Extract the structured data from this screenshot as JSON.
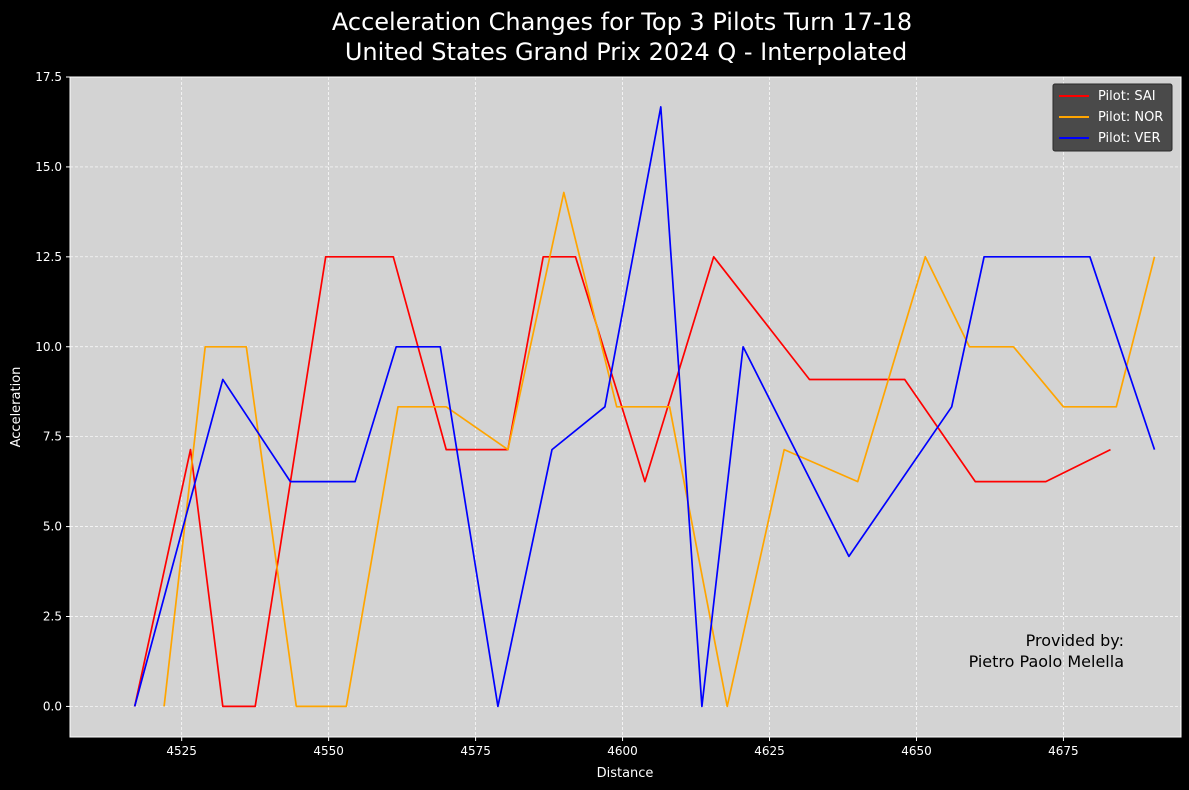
{
  "chart_data": {
    "type": "line",
    "title_lines": [
      "Acceleration Changes for Top 3 Pilots Turn 17-18",
      "United States Grand Prix 2024 Q - Interpolated"
    ],
    "xlabel": "Distance",
    "ylabel": "Acceleration",
    "xlim": [
      4506,
      4695
    ],
    "ylim": [
      -0.85,
      17.5
    ],
    "xticks": [
      4525,
      4550,
      4575,
      4600,
      4625,
      4650,
      4675
    ],
    "yticks": [
      0.0,
      2.5,
      5.0,
      7.5,
      10.0,
      12.5,
      15.0,
      17.5
    ],
    "ytick_labels": [
      "0.0",
      "2.5",
      "5.0",
      "7.5",
      "10.0",
      "12.5",
      "15.0",
      "17.5"
    ],
    "grid": true,
    "legend_position": "top-right",
    "background": "#d3d3d3",
    "series": [
      {
        "name": "Pilot: SAI",
        "color": "#ff0000",
        "points": [
          [
            4517,
            0.0
          ],
          [
            4526.5,
            7.14
          ],
          [
            4532,
            0.0
          ],
          [
            4537.5,
            0.0
          ],
          [
            4549.5,
            12.5
          ],
          [
            4561,
            12.5
          ],
          [
            4570,
            7.14
          ],
          [
            4580.5,
            7.14
          ],
          [
            4586.5,
            12.5
          ],
          [
            4592,
            12.5
          ],
          [
            4603.8,
            6.25
          ],
          [
            4615.5,
            12.5
          ],
          [
            4631.8,
            9.09
          ],
          [
            4648,
            9.09
          ],
          [
            4660,
            6.25
          ],
          [
            4672,
            6.25
          ],
          [
            4683,
            7.14
          ]
        ]
      },
      {
        "name": "Pilot: NOR",
        "color": "#ffa500",
        "points": [
          [
            4522,
            0.0
          ],
          [
            4529,
            10.0
          ],
          [
            4536,
            10.0
          ],
          [
            4544.5,
            0.0
          ],
          [
            4553,
            0.0
          ],
          [
            4561.8,
            8.33
          ],
          [
            4570,
            8.33
          ],
          [
            4580.5,
            7.14
          ],
          [
            4590,
            14.29
          ],
          [
            4599,
            8.33
          ],
          [
            4608,
            8.33
          ],
          [
            4617.8,
            0.0
          ],
          [
            4627.5,
            7.14
          ],
          [
            4640,
            6.25
          ],
          [
            4651.5,
            12.5
          ],
          [
            4659,
            10.0
          ],
          [
            4666.5,
            10.0
          ],
          [
            4675,
            8.33
          ],
          [
            4684,
            8.33
          ],
          [
            4690.5,
            12.5
          ]
        ]
      },
      {
        "name": "Pilot: VER",
        "color": "#0000ff",
        "points": [
          [
            4517,
            0.0
          ],
          [
            4532,
            9.09
          ],
          [
            4543.5,
            6.25
          ],
          [
            4554.5,
            6.25
          ],
          [
            4561.5,
            10.0
          ],
          [
            4569,
            10.0
          ],
          [
            4578.8,
            0.0
          ],
          [
            4588,
            7.14
          ],
          [
            4597,
            8.33
          ],
          [
            4606.5,
            16.67
          ],
          [
            4613.5,
            0.0
          ],
          [
            4620.5,
            10.0
          ],
          [
            4638.5,
            4.17
          ],
          [
            4656,
            8.33
          ],
          [
            4661.5,
            12.5
          ],
          [
            4679.5,
            12.5
          ],
          [
            4690.5,
            7.14
          ]
        ]
      }
    ],
    "annotation_lines": [
      "Provided by:",
      "Pietro Paolo Melella"
    ]
  }
}
